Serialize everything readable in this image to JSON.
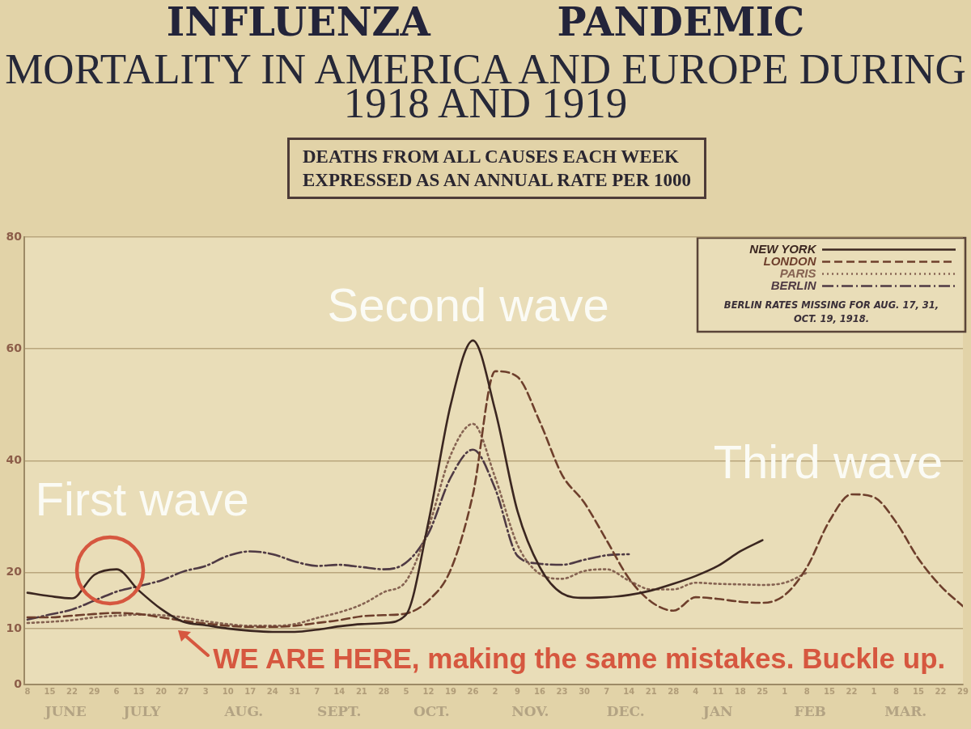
{
  "chart_data": {
    "type": "line",
    "title": "INFLUENZA PANDEMIC",
    "subtitle": "MORTALITY IN AMERICA AND EUROPE DURING\n1918 AND 1919",
    "ylabel": "DEATHS FROM ALL CAUSES EACH WEEK\nEXPRESSED AS AN ANNUAL RATE PER 1000",
    "x": [
      "1918-06-08",
      "1918-06-15",
      "1918-06-22",
      "1918-06-29",
      "1918-07-06",
      "1918-07-13",
      "1918-07-20",
      "1918-07-27",
      "1918-08-03",
      "1918-08-10",
      "1918-08-17",
      "1918-08-24",
      "1918-08-31",
      "1918-09-07",
      "1918-09-14",
      "1918-09-21",
      "1918-09-28",
      "1918-10-05",
      "1918-10-12",
      "1918-10-19",
      "1918-10-26",
      "1918-11-02",
      "1918-11-09",
      "1918-11-16",
      "1918-11-23",
      "1918-11-30",
      "1918-12-07",
      "1918-12-14",
      "1918-12-21",
      "1918-12-28",
      "1919-01-04",
      "1919-01-11",
      "1919-01-18",
      "1919-01-25",
      "1919-02-01",
      "1919-02-08",
      "1919-02-15",
      "1919-02-22",
      "1919-03-01",
      "1919-03-08",
      "1919-03-15",
      "1919-03-22",
      "1919-03-29"
    ],
    "series": [
      {
        "name": "NEW YORK",
        "color": "#3b2620",
        "line_style": "solid",
        "values": [
          16.4,
          15.8,
          15.4,
          19.6,
          20.6,
          16.8,
          13.5,
          11.2,
          10.6,
          10,
          9.6,
          9.4,
          9.4,
          9.8,
          10.4,
          10.8,
          11,
          12.5,
          29,
          50,
          61.5,
          49,
          31,
          21,
          16.3,
          15.5,
          15.6,
          16,
          16.8,
          18,
          19.4,
          21.2,
          23.8,
          25.8,
          null,
          null,
          null,
          null,
          null,
          null,
          null,
          null,
          null
        ]
      },
      {
        "name": "LONDON",
        "color": "#6e3f2c",
        "line_style": "dashed",
        "values": [
          12,
          12,
          12.3,
          12.6,
          12.8,
          12.6,
          12,
          11.4,
          10.9,
          10.5,
          10.3,
          10.3,
          10.5,
          11,
          11.5,
          12.2,
          12.4,
          12.7,
          15,
          20.5,
          34,
          56,
          55,
          47,
          37.5,
          32.5,
          25.8,
          19,
          14.8,
          13.2,
          15.6,
          15.3,
          14.8,
          14.6,
          16,
          21,
          29.2,
          34,
          33.5,
          29,
          22.5,
          17.6,
          14
        ]
      },
      {
        "name": "PARIS",
        "color": "#866352",
        "line_style": "dotted",
        "values": [
          11,
          11.2,
          11.5,
          12,
          12.3,
          12.5,
          12.4,
          12,
          11.3,
          10.8,
          10.5,
          10.5,
          10.8,
          11.9,
          12.9,
          14.3,
          16.5,
          18.5,
          28,
          41,
          46.6,
          37,
          25,
          19.8,
          18.9,
          20.3,
          20.6,
          18.6,
          17,
          17,
          18.2,
          18,
          17.9,
          17.8,
          18.2,
          20,
          null,
          null,
          null,
          null,
          null,
          null,
          null
        ]
      },
      {
        "name": "BERLIN",
        "color": "#4f3a44",
        "line_style": "dashdot",
        "values": [
          11.6,
          12.5,
          13.4,
          15,
          16.6,
          17.6,
          18.6,
          20.2,
          21.2,
          23,
          23.8,
          23.3,
          22,
          21.2,
          21.4,
          21,
          20.6,
          21.8,
          27,
          37,
          42,
          35,
          23,
          21.6,
          21.4,
          22.3,
          23.1,
          23.3,
          null,
          null,
          null,
          null,
          null,
          null,
          null,
          null,
          null,
          null,
          null,
          null,
          null,
          null,
          null
        ]
      }
    ],
    "xlim": [
      "1918-06-07",
      "1919-03-29"
    ],
    "xticks": [
      {
        "value": "1918-06-08",
        "label": "8"
      },
      {
        "value": "1918-06-15",
        "label": "15"
      },
      {
        "value": "1918-06-22",
        "label": "22"
      },
      {
        "value": "1918-06-29",
        "label": "29"
      },
      {
        "value": "1918-07-06",
        "label": "6"
      },
      {
        "value": "1918-07-13",
        "label": "13"
      },
      {
        "value": "1918-07-20",
        "label": "20"
      },
      {
        "value": "1918-07-27",
        "label": "27"
      },
      {
        "value": "1918-08-03",
        "label": "3"
      },
      {
        "value": "1918-08-10",
        "label": "10"
      },
      {
        "value": "1918-08-17",
        "label": "17"
      },
      {
        "value": "1918-08-24",
        "label": "24"
      },
      {
        "value": "1918-08-31",
        "label": "31"
      },
      {
        "value": "1918-09-07",
        "label": "7"
      },
      {
        "value": "1918-09-14",
        "label": "14"
      },
      {
        "value": "1918-09-21",
        "label": "21"
      },
      {
        "value": "1918-09-28",
        "label": "28"
      },
      {
        "value": "1918-10-05",
        "label": "5"
      },
      {
        "value": "1918-10-12",
        "label": "12"
      },
      {
        "value": "1918-10-19",
        "label": "19"
      },
      {
        "value": "1918-10-26",
        "label": "26"
      },
      {
        "value": "1918-11-02",
        "label": "2"
      },
      {
        "value": "1918-11-09",
        "label": "9"
      },
      {
        "value": "1918-11-16",
        "label": "16"
      },
      {
        "value": "1918-11-23",
        "label": "23"
      },
      {
        "value": "1918-11-30",
        "label": "30"
      },
      {
        "value": "1918-12-07",
        "label": "7"
      },
      {
        "value": "1918-12-14",
        "label": "14"
      },
      {
        "value": "1918-12-21",
        "label": "21"
      },
      {
        "value": "1918-12-28",
        "label": "28"
      },
      {
        "value": "1919-01-04",
        "label": "4"
      },
      {
        "value": "1919-01-11",
        "label": "11"
      },
      {
        "value": "1919-01-18",
        "label": "18"
      },
      {
        "value": "1919-01-25",
        "label": "25"
      },
      {
        "value": "1919-02-01",
        "label": "1"
      },
      {
        "value": "1919-02-08",
        "label": "8"
      },
      {
        "value": "1919-02-15",
        "label": "15"
      },
      {
        "value": "1919-02-22",
        "label": "22"
      },
      {
        "value": "1919-03-01",
        "label": "1"
      },
      {
        "value": "1919-03-08",
        "label": "8"
      },
      {
        "value": "1919-03-15",
        "label": "15"
      },
      {
        "value": "1919-03-22",
        "label": "22"
      },
      {
        "value": "1919-03-29",
        "label": "29"
      }
    ],
    "x2lim": [
      "1918-06-07",
      "1919-03-29"
    ],
    "x2ticks": [
      {
        "value": "1918-06-20",
        "label": "JUNE"
      },
      {
        "value": "1918-07-14",
        "label": "JULY"
      },
      {
        "value": "1918-08-15",
        "label": "AUG."
      },
      {
        "value": "1918-09-14",
        "label": "SEPT."
      },
      {
        "value": "1918-10-13",
        "label": "OCT."
      },
      {
        "value": "1918-11-13",
        "label": "NOV."
      },
      {
        "value": "1918-12-13",
        "label": "DEC."
      },
      {
        "value": "1919-01-11",
        "label": "JAN"
      },
      {
        "value": "1919-02-09",
        "label": "FEB"
      },
      {
        "value": "1919-03-11",
        "label": "MAR."
      }
    ],
    "ylim": [
      0,
      80
    ],
    "yticks": [
      0,
      10,
      20,
      40,
      60,
      80
    ],
    "grid": "y",
    "legend": "top right",
    "annotations": [
      "BERLIN RATES MISSING FOR AUG. 17, 31,\nOCT. 19, 1918.",
      "First wave",
      "Second wave",
      "Third wave",
      "WE ARE HERE, making the same mistakes. Buckle up."
    ]
  }
}
